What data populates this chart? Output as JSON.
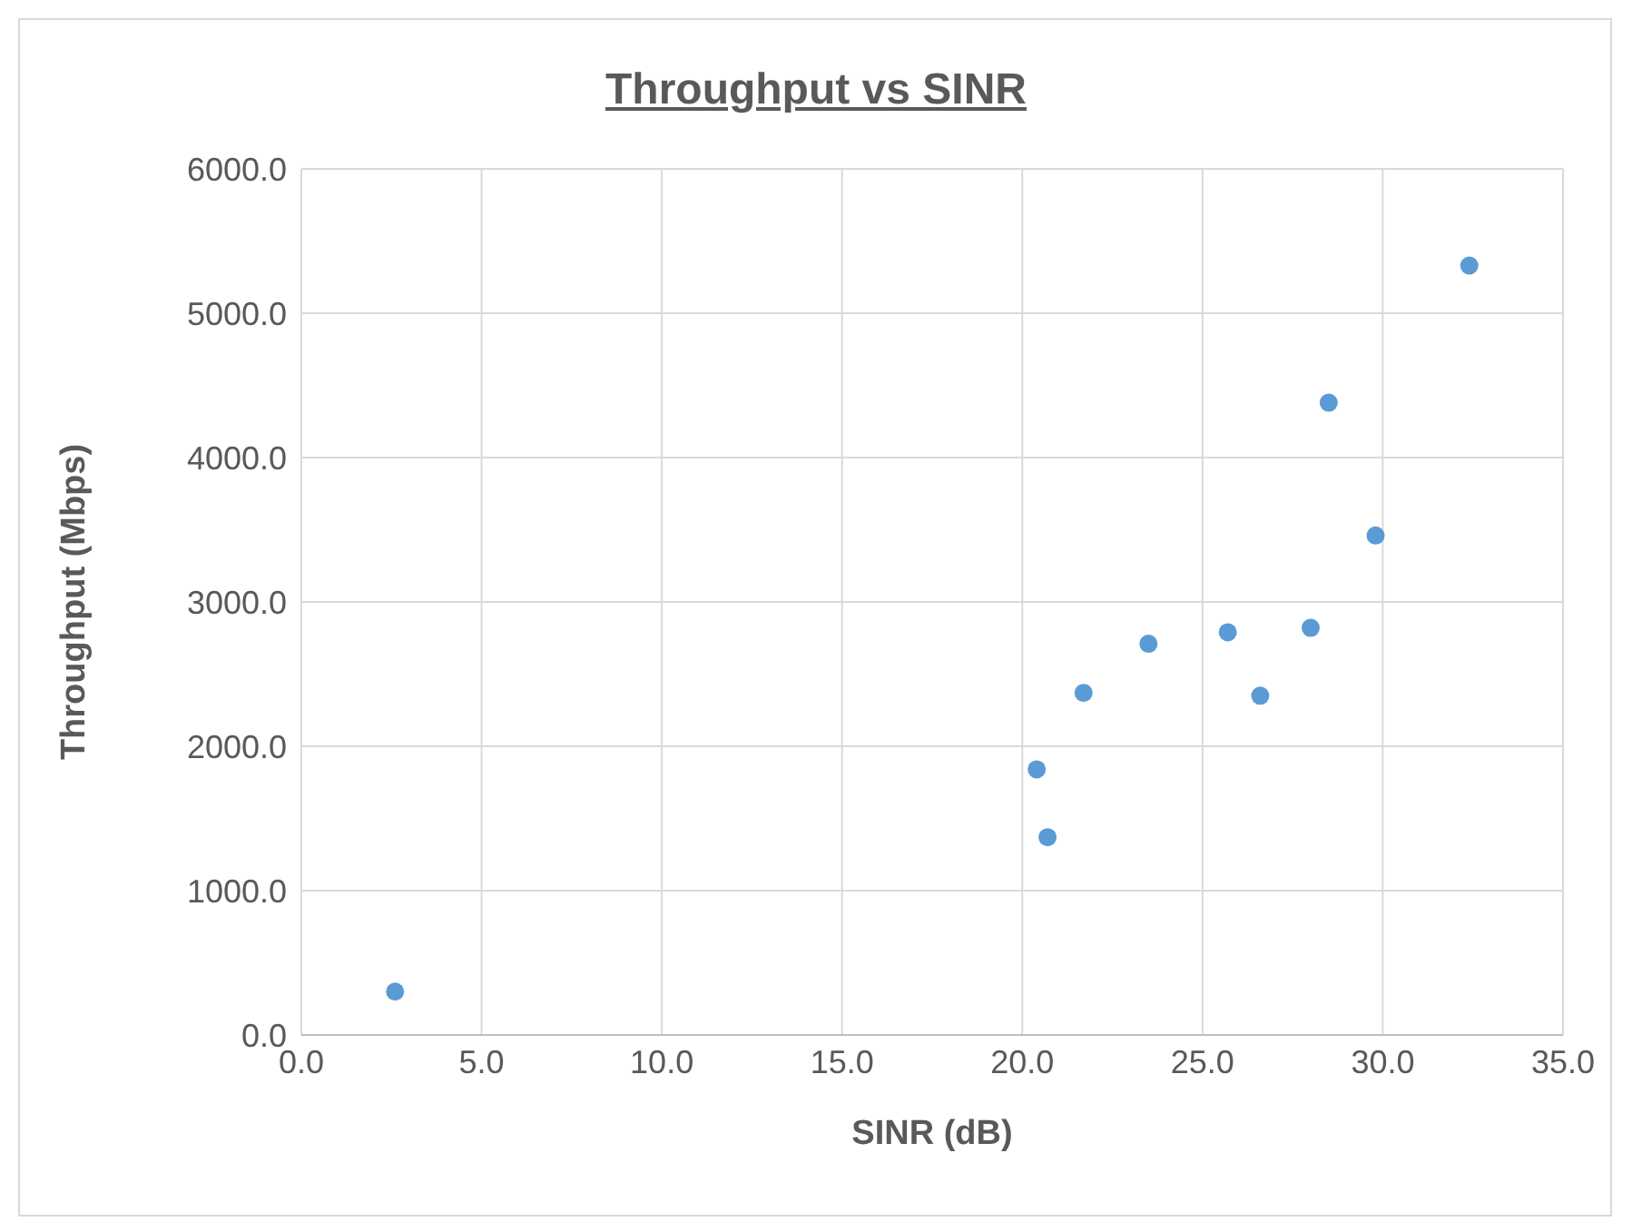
{
  "chart_data": {
    "type": "scatter",
    "title": "Throughput vs SINR",
    "xlabel": "SINR (dB)",
    "ylabel": "Throughput (Mbps)",
    "x": [
      2.6,
      20.4,
      20.7,
      21.7,
      23.5,
      25.7,
      26.6,
      28.0,
      28.5,
      29.8,
      32.4
    ],
    "series": [
      {
        "color": "#5b9bd5",
        "values": [
          300,
          1840,
          1370,
          2370,
          2710,
          2790,
          2350,
          2820,
          4380,
          3460,
          5330
        ]
      }
    ],
    "xlim": [
      0,
      35
    ],
    "xticks": [
      {
        "value": 0,
        "label": "0.0"
      },
      {
        "value": 5,
        "label": "5.0"
      },
      {
        "value": 10,
        "label": "10.0"
      },
      {
        "value": 15,
        "label": "15.0"
      },
      {
        "value": 20,
        "label": "20.0"
      },
      {
        "value": 25,
        "label": "25.0"
      },
      {
        "value": 30,
        "label": "30.0"
      },
      {
        "value": 35,
        "label": "35.0"
      }
    ],
    "ylim": [
      0,
      6000
    ],
    "yticks": [
      {
        "value": 0,
        "label": "0.0"
      },
      {
        "value": 1000,
        "label": "1000.0"
      },
      {
        "value": 2000,
        "label": "2000.0"
      },
      {
        "value": 3000,
        "label": "3000.0"
      },
      {
        "value": 4000,
        "label": "4000.0"
      },
      {
        "value": 5000,
        "label": "5000.0"
      },
      {
        "value": 6000,
        "label": "6000.0"
      }
    ],
    "grid": true,
    "legend": false,
    "marker": "circle"
  }
}
